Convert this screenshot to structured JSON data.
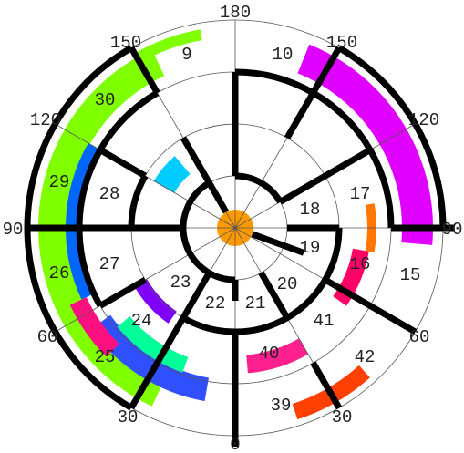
{
  "angle_labels": [
    "180",
    "150",
    "150",
    "120",
    "120",
    "90",
    "90",
    "60",
    "60",
    "30",
    "30",
    "0"
  ],
  "region_labels": [
    "9",
    "10",
    "30",
    "29",
    "28",
    "18",
    "17",
    "27",
    "26",
    "19",
    "16",
    "15",
    "23",
    "22",
    "21",
    "20",
    "24",
    "41",
    "25",
    "40",
    "42",
    "39"
  ]
}
